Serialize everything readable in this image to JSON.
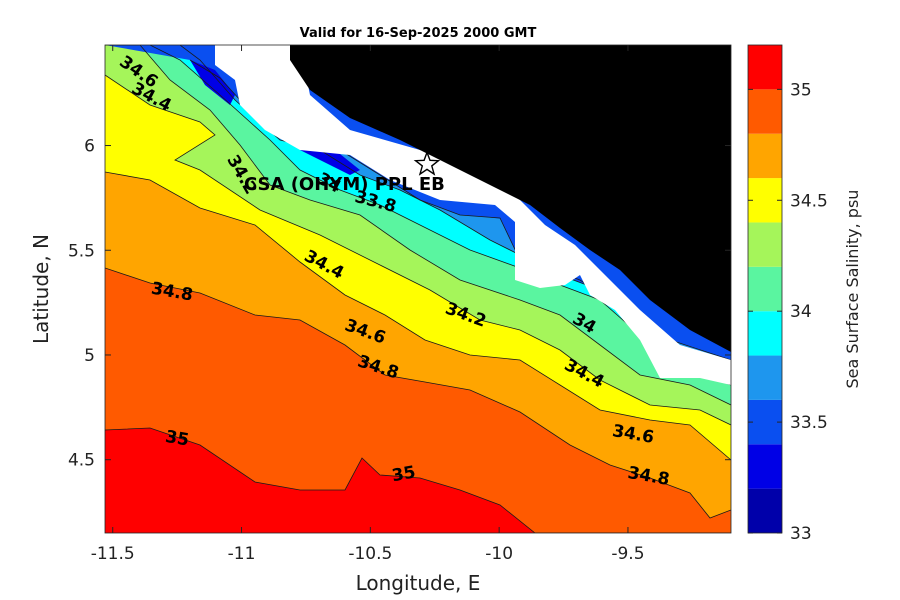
{
  "chart_data": {
    "type": "contourf",
    "title": "Valid for 16-Sep-2025 2000 GMT",
    "xlabel": "Longitude, E",
    "ylabel": "Latitude, N",
    "xlim": [
      -11.53,
      -9.1
    ],
    "ylim": [
      4.15,
      6.48
    ],
    "xticks": [
      -11.5,
      -11,
      -10.5,
      -10,
      -9.5
    ],
    "xtick_labels": [
      "-11.5",
      "-11",
      "-10.5",
      "-10",
      "-9.5"
    ],
    "yticks": [
      4.5,
      5,
      5.5,
      6
    ],
    "ytick_labels": [
      "4.5",
      "5",
      "5.5",
      "6"
    ],
    "variable": "Sea Surface Salinity",
    "units": "psu",
    "colorbar": {
      "label": "Sea Surface Salinity, psu",
      "range": [
        33.0,
        35.2
      ],
      "ticks": [
        33,
        33.5,
        34,
        34.5,
        35
      ],
      "tick_labels": [
        "33",
        "33.5",
        "34",
        "34.5",
        "35"
      ],
      "levels": [
        33.0,
        33.2,
        33.4,
        33.6,
        33.8,
        34.0,
        34.2,
        34.4,
        34.6,
        34.8,
        35.0,
        35.2
      ],
      "colors": [
        "#0000aa",
        "#0000e6",
        "#0a4ff0",
        "#1e96ee",
        "#00ffff",
        "#5af5a0",
        "#a5f55a",
        "#ffff00",
        "#ffa500",
        "#ff5a00",
        "#ff0000"
      ]
    },
    "contour_labels": [
      {
        "text": "34.6",
        "lon": -11.4,
        "lat": 6.35,
        "angle": 35
      },
      {
        "text": "34.4",
        "lon": -11.35,
        "lat": 6.23,
        "angle": 28
      },
      {
        "text": "34.2",
        "lon": -11.0,
        "lat": 5.86,
        "angle": 60
      },
      {
        "text": "34",
        "lon": -10.66,
        "lat": 5.82,
        "angle": 28
      },
      {
        "text": "33.8",
        "lon": -10.48,
        "lat": 5.73,
        "angle": 15
      },
      {
        "text": "34.4",
        "lon": -10.68,
        "lat": 5.43,
        "angle": 28
      },
      {
        "text": "34.2",
        "lon": -10.13,
        "lat": 5.19,
        "angle": 20
      },
      {
        "text": "34",
        "lon": -9.67,
        "lat": 5.15,
        "angle": 30
      },
      {
        "text": "34.8",
        "lon": -11.27,
        "lat": 5.3,
        "angle": 10
      },
      {
        "text": "34.6",
        "lon": -10.52,
        "lat": 5.11,
        "angle": 20
      },
      {
        "text": "34.8",
        "lon": -10.47,
        "lat": 4.94,
        "angle": 18
      },
      {
        "text": "34.4",
        "lon": -9.67,
        "lat": 4.91,
        "angle": 28
      },
      {
        "text": "34.6",
        "lon": -9.48,
        "lat": 4.62,
        "angle": 10
      },
      {
        "text": "34.8",
        "lon": -9.42,
        "lat": 4.42,
        "angle": 10
      },
      {
        "text": "35",
        "lon": -11.25,
        "lat": 4.6,
        "angle": 10
      },
      {
        "text": "35",
        "lon": -10.37,
        "lat": 4.43,
        "angle": -10
      }
    ],
    "station": {
      "label": "CSA (OHYM) PPL EB",
      "lon": -10.28,
      "lat": 5.91,
      "marker": "star"
    },
    "land_color": "#000000",
    "nodata_color": "#ffffff"
  }
}
